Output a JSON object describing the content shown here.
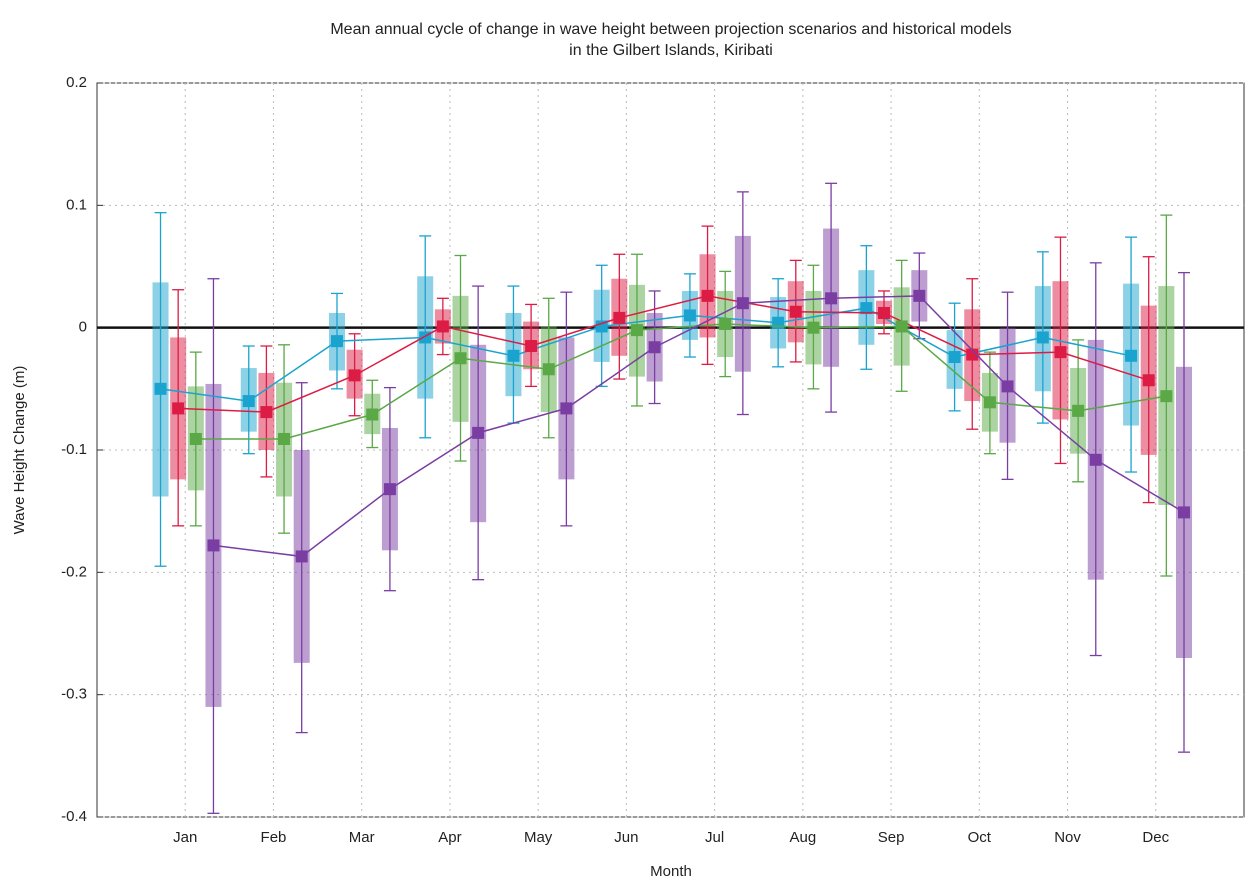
{
  "chart_data": {
    "type": "errorbox-line",
    "title": [
      "Mean annual cycle of change in wave height between projection scenarios and historical models",
      "in the Gilbert Islands, Kiribati"
    ],
    "x_label": "Month",
    "y_label": "Wave Height Change (m)",
    "categories": [
      "Jan",
      "Feb",
      "Mar",
      "Apr",
      "May",
      "Jun",
      "Jul",
      "Aug",
      "Sep",
      "Oct",
      "Nov",
      "Dec"
    ],
    "ylim": [
      -0.4,
      0.2
    ],
    "yticks": [
      -0.4,
      -0.3,
      -0.2,
      -0.1,
      0,
      0.1,
      0.2
    ],
    "grid": true,
    "zero_line": true,
    "series": [
      {
        "color": "#1ba3cf",
        "values": [
          -0.05,
          -0.06,
          -0.011,
          -0.008,
          -0.023,
          0.001,
          0.01,
          0.004,
          0.016,
          -0.024,
          -0.008,
          -0.023
        ],
        "box_low": [
          -0.138,
          -0.085,
          -0.035,
          -0.058,
          -0.056,
          -0.028,
          -0.01,
          -0.017,
          -0.014,
          -0.05,
          -0.052,
          -0.08
        ],
        "box_high": [
          0.037,
          -0.033,
          0.012,
          0.042,
          0.012,
          0.031,
          0.03,
          0.025,
          0.047,
          -0.002,
          0.034,
          0.036
        ],
        "whisker_low": [
          -0.195,
          -0.103,
          -0.05,
          -0.09,
          -0.078,
          -0.048,
          -0.024,
          -0.032,
          -0.034,
          -0.068,
          -0.078,
          -0.118
        ],
        "whisker_high": [
          0.094,
          -0.015,
          0.028,
          0.075,
          0.034,
          0.051,
          0.044,
          0.04,
          0.067,
          0.02,
          0.062,
          0.074
        ]
      },
      {
        "color": "#dc1c44",
        "values": [
          -0.066,
          -0.069,
          -0.039,
          0.001,
          -0.015,
          0.008,
          0.026,
          0.013,
          0.012,
          -0.022,
          -0.02,
          -0.043
        ],
        "box_low": [
          -0.124,
          -0.1,
          -0.058,
          -0.013,
          -0.034,
          -0.023,
          -0.008,
          -0.012,
          0.003,
          -0.06,
          -0.075,
          -0.104
        ],
        "box_high": [
          -0.008,
          -0.037,
          -0.018,
          0.015,
          0.005,
          0.04,
          0.06,
          0.038,
          0.022,
          0.015,
          0.038,
          0.018
        ],
        "whisker_low": [
          -0.162,
          -0.122,
          -0.072,
          -0.022,
          -0.048,
          -0.042,
          -0.03,
          -0.028,
          -0.005,
          -0.083,
          -0.111,
          -0.143
        ],
        "whisker_high": [
          0.031,
          -0.015,
          -0.005,
          0.024,
          0.019,
          0.06,
          0.083,
          0.055,
          0.03,
          0.04,
          0.074,
          0.058
        ]
      },
      {
        "color": "#5aa846",
        "values": [
          -0.091,
          -0.091,
          -0.071,
          -0.025,
          -0.034,
          -0.002,
          0.003,
          0.0,
          0.001,
          -0.061,
          -0.068,
          -0.056
        ],
        "box_low": [
          -0.133,
          -0.138,
          -0.087,
          -0.077,
          -0.069,
          -0.04,
          -0.024,
          -0.03,
          -0.031,
          -0.085,
          -0.103,
          -0.145
        ],
        "box_high": [
          -0.048,
          -0.045,
          -0.054,
          0.026,
          0.001,
          0.035,
          0.03,
          0.03,
          0.033,
          -0.037,
          -0.033,
          0.034
        ],
        "whisker_low": [
          -0.162,
          -0.168,
          -0.098,
          -0.109,
          -0.09,
          -0.064,
          -0.04,
          -0.05,
          -0.052,
          -0.103,
          -0.126,
          -0.203
        ],
        "whisker_high": [
          -0.02,
          -0.014,
          -0.043,
          0.059,
          0.024,
          0.06,
          0.046,
          0.051,
          0.055,
          -0.02,
          -0.01,
          0.092
        ]
      },
      {
        "color": "#7a3ea3",
        "values": [
          -0.178,
          -0.187,
          -0.132,
          -0.086,
          -0.066,
          -0.016,
          0.02,
          0.024,
          0.026,
          -0.048,
          -0.108,
          -0.151
        ],
        "box_low": [
          -0.31,
          -0.274,
          -0.182,
          -0.159,
          -0.124,
          -0.044,
          -0.036,
          -0.032,
          0.005,
          -0.094,
          -0.206,
          -0.27
        ],
        "box_high": [
          -0.046,
          -0.1,
          -0.082,
          -0.014,
          -0.008,
          0.012,
          0.075,
          0.081,
          0.047,
          0.0,
          -0.01,
          -0.032
        ],
        "whisker_low": [
          -0.397,
          -0.331,
          -0.215,
          -0.206,
          -0.162,
          -0.062,
          -0.071,
          -0.069,
          -0.009,
          -0.124,
          -0.268,
          -0.347
        ],
        "whisker_high": [
          0.04,
          -0.045,
          -0.049,
          0.034,
          0.029,
          0.03,
          0.111,
          0.118,
          0.061,
          0.029,
          0.053,
          0.045
        ]
      }
    ]
  }
}
